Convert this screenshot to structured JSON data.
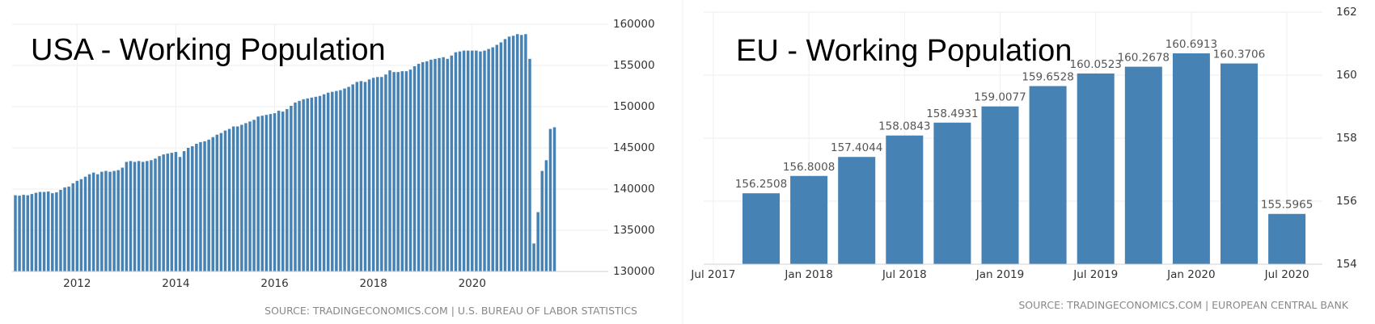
{
  "chart_data": [
    {
      "type": "bar",
      "title": "USA - Working Population",
      "source": "SOURCE: TRADINGECONOMICS.COM | U.S. BUREAU OF LABOR STATISTICS",
      "x_start": "2010-10",
      "frequency": "monthly",
      "xticks": [
        "2012",
        "2014",
        "2016",
        "2018",
        "2020"
      ],
      "yticks": [
        "160000",
        "155000",
        "150000",
        "145000",
        "140000",
        "135000",
        "130000"
      ],
      "ylim": [
        130000,
        160000
      ],
      "grid": true,
      "color": "#4682b4",
      "values": [
        139250,
        139200,
        139300,
        139250,
        139400,
        139550,
        139650,
        139650,
        139700,
        139500,
        139600,
        139900,
        140200,
        140300,
        140700,
        141000,
        141200,
        141500,
        141800,
        142000,
        141800,
        142100,
        142200,
        142100,
        142200,
        142300,
        142600,
        143300,
        143400,
        143300,
        143400,
        143300,
        143400,
        143500,
        143700,
        144000,
        144200,
        144300,
        144400,
        144500,
        143900,
        144600,
        145000,
        145200,
        145500,
        145700,
        145800,
        146000,
        146300,
        146600,
        146800,
        147100,
        147300,
        147600,
        147600,
        147800,
        148000,
        148200,
        148400,
        148800,
        148900,
        149000,
        149100,
        149200,
        149500,
        149400,
        149700,
        150100,
        150500,
        150700,
        150900,
        151000,
        151100,
        151200,
        151300,
        151500,
        151700,
        151800,
        151900,
        152000,
        152200,
        152400,
        152700,
        153000,
        153100,
        153000,
        153300,
        153500,
        153600,
        153600,
        153900,
        154400,
        154200,
        154200,
        154300,
        154300,
        154500,
        154900,
        155200,
        155400,
        155500,
        155700,
        155800,
        155900,
        156000,
        155800,
        156200,
        156600,
        156700,
        156800,
        156800,
        156800,
        156800,
        156700,
        156800,
        157000,
        157200,
        157500,
        157800,
        158200,
        158500,
        158600,
        158800,
        158700,
        158800,
        155800,
        133400,
        137200,
        142200,
        143500,
        147300,
        147500
      ]
    },
    {
      "type": "bar",
      "title": "EU - Working Population",
      "source": "SOURCE: TRADINGECONOMICS.COM | EUROPEAN CENTRAL BANK",
      "categories": [
        "2017-Q3",
        "2017-Q4",
        "2018-Q1",
        "2018-Q2",
        "2018-Q3",
        "2018-Q4",
        "2019-Q1",
        "2019-Q2",
        "2019-Q3",
        "2019-Q4",
        "2020-Q1",
        "2020-Q2"
      ],
      "values": [
        156.2508,
        156.8008,
        157.4044,
        158.0843,
        158.4931,
        159.0077,
        159.6528,
        160.0523,
        160.2678,
        160.6913,
        160.3706,
        155.5965
      ],
      "labels": [
        "156.2508",
        "156.8008",
        "157.4044",
        "158.0843",
        "158.4931",
        "159.0077",
        "159.6528",
        "160.0523",
        "160.2678",
        "160.6913",
        "160.3706",
        "155.5965"
      ],
      "xticks": [
        "Jul 2017",
        "Jan 2018",
        "Jul 2018",
        "Jan 2019",
        "Jul 2019",
        "Jan 2020",
        "Jul 2020"
      ],
      "yticks": [
        "162",
        "160",
        "158",
        "156",
        "154"
      ],
      "ylim": [
        154,
        162
      ],
      "grid": true,
      "color": "#4682b4"
    }
  ]
}
